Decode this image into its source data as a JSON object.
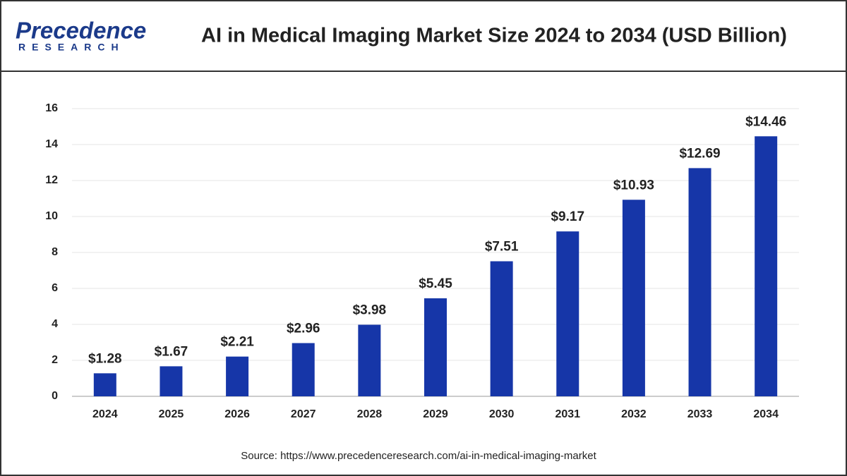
{
  "logo": {
    "name": "Precedence",
    "tagline": "RESEARCH"
  },
  "chart_data": {
    "type": "bar",
    "title": "AI in Medical Imaging Market Size 2024 to 2034 (USD Billion)",
    "categories": [
      "2024",
      "2025",
      "2026",
      "2027",
      "2028",
      "2029",
      "2030",
      "2031",
      "2032",
      "2033",
      "2034"
    ],
    "values": [
      1.28,
      1.67,
      2.21,
      2.96,
      3.98,
      5.45,
      7.51,
      9.17,
      10.93,
      12.69,
      14.46
    ],
    "value_labels": [
      "$1.28",
      "$1.67",
      "$2.21",
      "$2.96",
      "$3.98",
      "$5.45",
      "$7.51",
      "$9.17",
      "$10.93",
      "$12.69",
      "$14.46"
    ],
    "color": "#1636a8",
    "ylim": [
      0,
      16
    ],
    "yticks": [
      0,
      2,
      4,
      6,
      8,
      10,
      12,
      14,
      16
    ],
    "grid": true,
    "source": "Source: https://www.precedenceresearch.com/ai-in-medical-imaging-market"
  }
}
